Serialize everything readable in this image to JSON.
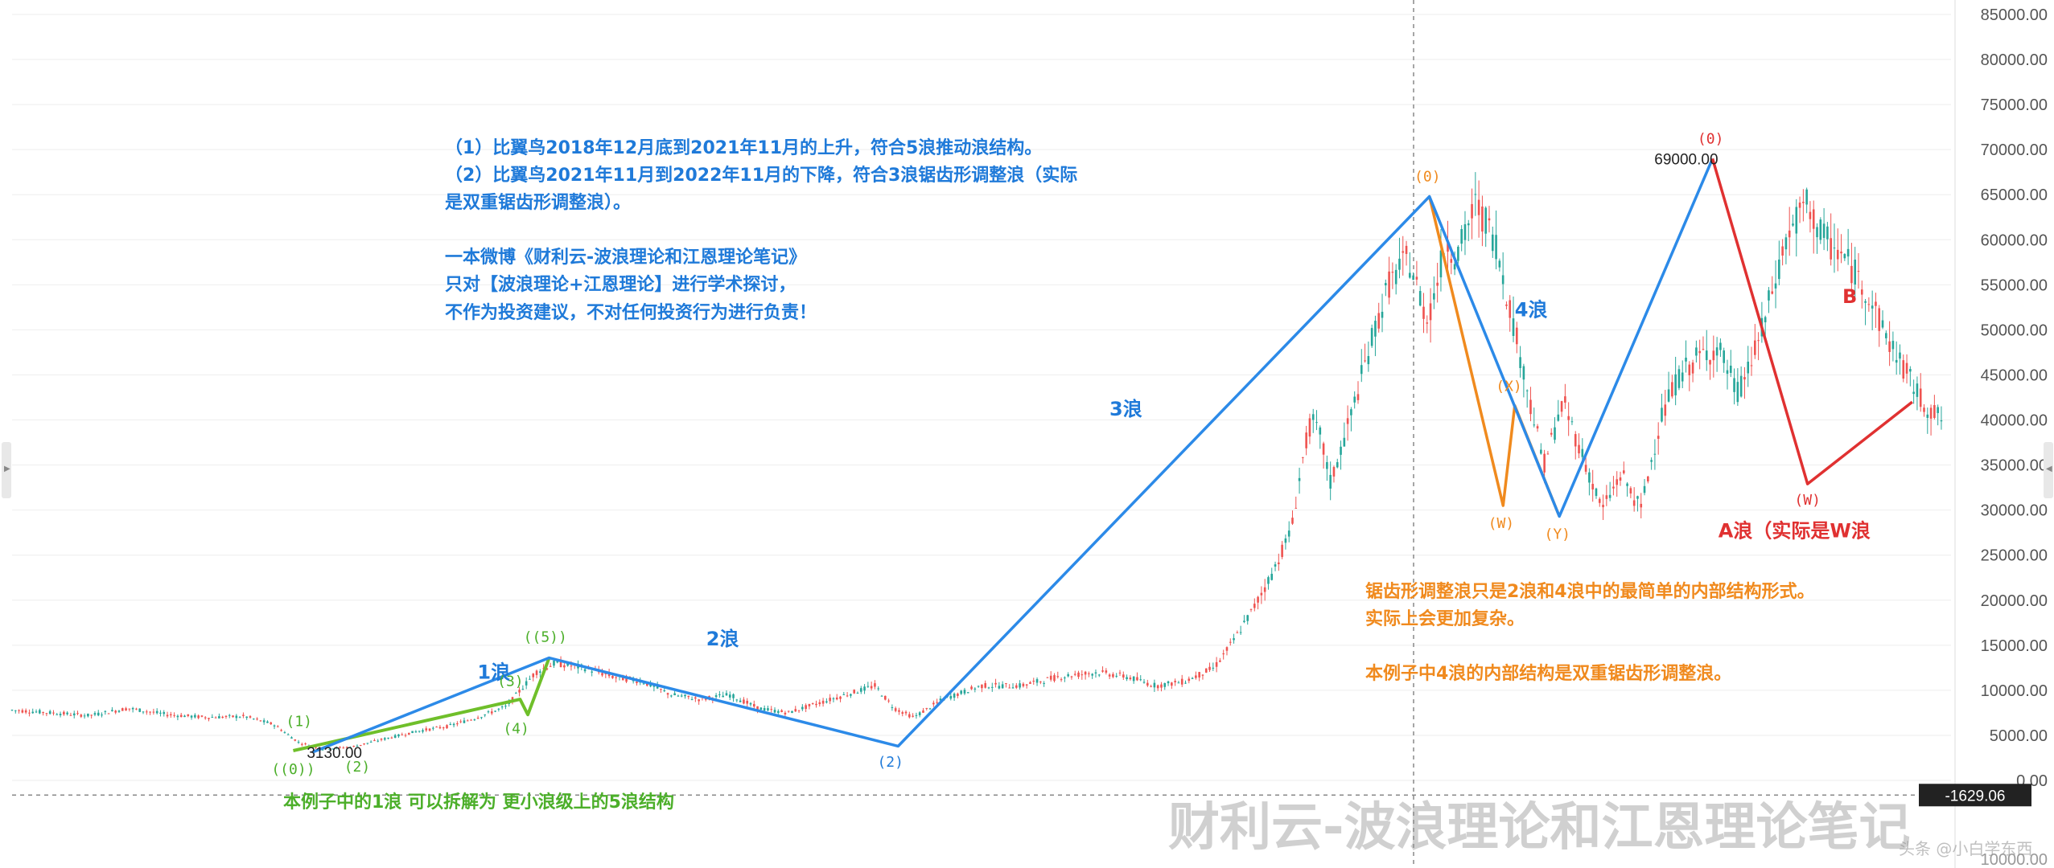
{
  "chart_data": {
    "type": "line",
    "title": "",
    "xlabel": "",
    "ylabel": "",
    "ylim": [
      -10000,
      87000
    ],
    "grid": true,
    "y_ticks": [
      "85000.00",
      "80000.00",
      "75000.00",
      "70000.00",
      "65000.00",
      "60000.00",
      "55000.00",
      "50000.00",
      "45000.00",
      "40000.00",
      "35000.00",
      "30000.00",
      "25000.00",
      "20000.00",
      "15000.00",
      "10000.00",
      "5000.00",
      "0.00"
    ],
    "current_price_label": "-1629.06",
    "bottom_tick_label": "10000.00",
    "price_series": [
      [
        0.0,
        7800
      ],
      [
        0.02,
        7500
      ],
      [
        0.04,
        7200
      ],
      [
        0.06,
        8000
      ],
      [
        0.08,
        7300
      ],
      [
        0.1,
        7000
      ],
      [
        0.12,
        7100
      ],
      [
        0.135,
        6200
      ],
      [
        0.148,
        4200
      ],
      [
        0.16,
        3500
      ],
      [
        0.175,
        3700
      ],
      [
        0.19,
        4500
      ],
      [
        0.21,
        5500
      ],
      [
        0.225,
        6000
      ],
      [
        0.24,
        7000
      ],
      [
        0.255,
        8200
      ],
      [
        0.27,
        12000
      ],
      [
        0.28,
        13000
      ],
      [
        0.295,
        12500
      ],
      [
        0.31,
        11500
      ],
      [
        0.325,
        11000
      ],
      [
        0.34,
        9500
      ],
      [
        0.355,
        9000
      ],
      [
        0.37,
        9500
      ],
      [
        0.385,
        8000
      ],
      [
        0.4,
        7500
      ],
      [
        0.415,
        8500
      ],
      [
        0.43,
        9500
      ],
      [
        0.445,
        10500
      ],
      [
        0.455,
        8000
      ],
      [
        0.465,
        7000
      ],
      [
        0.48,
        9000
      ],
      [
        0.5,
        10500
      ],
      [
        0.52,
        10500
      ],
      [
        0.54,
        11500
      ],
      [
        0.56,
        12000
      ],
      [
        0.575,
        11500
      ],
      [
        0.59,
        10500
      ],
      [
        0.605,
        11000
      ],
      [
        0.62,
        12500
      ],
      [
        0.63,
        15500
      ],
      [
        0.64,
        19000
      ],
      [
        0.65,
        23000
      ],
      [
        0.66,
        28000
      ],
      [
        0.665,
        35000
      ],
      [
        0.67,
        40000
      ],
      [
        0.675,
        38000
      ],
      [
        0.68,
        33000
      ],
      [
        0.69,
        40000
      ],
      [
        0.7,
        48000
      ],
      [
        0.71,
        55000
      ],
      [
        0.72,
        58000
      ],
      [
        0.73,
        51000
      ],
      [
        0.74,
        60000
      ],
      [
        0.745,
        58000
      ],
      [
        0.755,
        64000
      ],
      [
        0.765,
        60000
      ],
      [
        0.775,
        50000
      ],
      [
        0.785,
        40000
      ],
      [
        0.79,
        35000
      ],
      [
        0.8,
        42000
      ],
      [
        0.81,
        36000
      ],
      [
        0.82,
        30000
      ],
      [
        0.83,
        34000
      ],
      [
        0.84,
        30000
      ],
      [
        0.85,
        40000
      ],
      [
        0.86,
        45000
      ],
      [
        0.87,
        47000
      ],
      [
        0.88,
        48000
      ],
      [
        0.89,
        43000
      ],
      [
        0.9,
        48000
      ],
      [
        0.905,
        52000
      ],
      [
        0.915,
        60000
      ],
      [
        0.925,
        64000
      ],
      [
        0.935,
        60000
      ],
      [
        0.945,
        58000
      ],
      [
        0.955,
        55000
      ],
      [
        0.965,
        50000
      ],
      [
        0.975,
        46000
      ],
      [
        0.985,
        42000
      ],
      [
        0.995,
        40000
      ]
    ],
    "impulse_wave_blue": [
      {
        "x": 0.155,
        "y": 3130,
        "label": ""
      },
      {
        "x": 0.277,
        "y": 13600,
        "label": ""
      },
      {
        "x": 0.457,
        "y": 3800,
        "label": "(2)"
      },
      {
        "x": 0.731,
        "y": 64800,
        "label": "(0)"
      },
      {
        "x": 0.798,
        "y": 29300,
        "label": "(X)"
      },
      {
        "x": 0.877,
        "y": 69000,
        "label": "(0)"
      }
    ],
    "wave1_green": [
      {
        "x": 0.145,
        "y": 3300
      },
      {
        "x": 0.262,
        "y": 9000
      },
      {
        "x": 0.266,
        "y": 7300
      },
      {
        "x": 0.277,
        "y": 13600
      }
    ],
    "wave4_orange": [
      {
        "x": 0.731,
        "y": 64800
      },
      {
        "x": 0.769,
        "y": 30500
      },
      {
        "x": 0.775,
        "y": 41600
      },
      {
        "x": 0.798,
        "y": 29300
      }
    ],
    "red_a_wave": [
      {
        "x": 0.877,
        "y": 69000
      },
      {
        "x": 0.926,
        "y": 32900
      },
      {
        "x": 0.98,
        "y": 42000
      }
    ],
    "wave_labels": [
      {
        "text": "1浪",
        "x": 0.24,
        "y": 11300,
        "color": "#1f7ad9"
      },
      {
        "text": "2浪",
        "x": 0.358,
        "y": 15000,
        "color": "#1f7ad9"
      },
      {
        "text": "3浪",
        "x": 0.566,
        "y": 40500,
        "color": "#1f7ad9"
      },
      {
        "text": "4浪",
        "x": 0.775,
        "y": 51500,
        "color": "#1f7ad9"
      },
      {
        "text": "B",
        "x": 0.944,
        "y": 53000,
        "color": "#e03131"
      },
      {
        "text": "A浪（实际是W浪",
        "x": 0.88,
        "y": 27000,
        "color": "#e03131"
      }
    ],
    "small_labels": [
      {
        "text": "(1)",
        "x": 0.148,
        "y": 6000,
        "color": "#4caf2a"
      },
      {
        "text": "(2)",
        "x": 0.178,
        "y": 1000,
        "color": "#4caf2a"
      },
      {
        "text": "(3)",
        "x": 0.257,
        "y": 10500,
        "color": "#4caf2a"
      },
      {
        "text": "(4)",
        "x": 0.26,
        "y": 5200,
        "color": "#4caf2a"
      },
      {
        "text": "((5))",
        "x": 0.275,
        "y": 15400,
        "color": "#4caf2a"
      },
      {
        "text": "((0))",
        "x": 0.145,
        "y": 700,
        "color": "#4caf2a"
      },
      {
        "text": "(2)",
        "x": 0.453,
        "y": 1500,
        "color": "#1f7ad9"
      },
      {
        "text": "(0)",
        "x": 0.73,
        "y": 66500,
        "color": "#f08a1e"
      },
      {
        "text": "(X)",
        "x": 0.772,
        "y": 43200,
        "color": "#f08a1e"
      },
      {
        "text": "(W)",
        "x": 0.768,
        "y": 28000,
        "color": "#f08a1e"
      },
      {
        "text": "(Y)",
        "x": 0.797,
        "y": 26800,
        "color": "#f08a1e"
      },
      {
        "text": "(0)",
        "x": 0.876,
        "y": 70700,
        "color": "#e03131"
      },
      {
        "text": "(W)",
        "x": 0.926,
        "y": 30600,
        "color": "#e03131"
      }
    ],
    "price_annotations": [
      {
        "text": "3130.00",
        "x": 0.152,
        "y": 3130
      },
      {
        "text": "69000.00",
        "x": 0.847,
        "y": 69000
      }
    ]
  },
  "notes": {
    "blue": "（1）比翼鸟2018年12月底到2021年11月的上升，符合5浪推动浪结构。\n（2）比翼鸟2021年11月到2022年11月的下降，符合3浪锯齿形调整浪（实际\n是双重锯齿形调整浪）。\n\n一本微博《财利云-波浪理论和江恩理论笔记》\n只对【波浪理论+江恩理论】进行学术探讨，\n不作为投资建议，不对任何投资行为进行负责！",
    "orange": "锯齿形调整浪只是2浪和4浪中的最简单的内部结构形式。\n实际上会更加复杂。\n\n本例子中4浪的内部结构是双重锯齿形调整浪。",
    "green": "本例子中的1浪 可以拆解为 更小浪级上的5浪结构"
  },
  "watermark": {
    "text": "财利云-波浪理论和江恩理论笔记",
    "sub": "头条 @小白学东西"
  }
}
